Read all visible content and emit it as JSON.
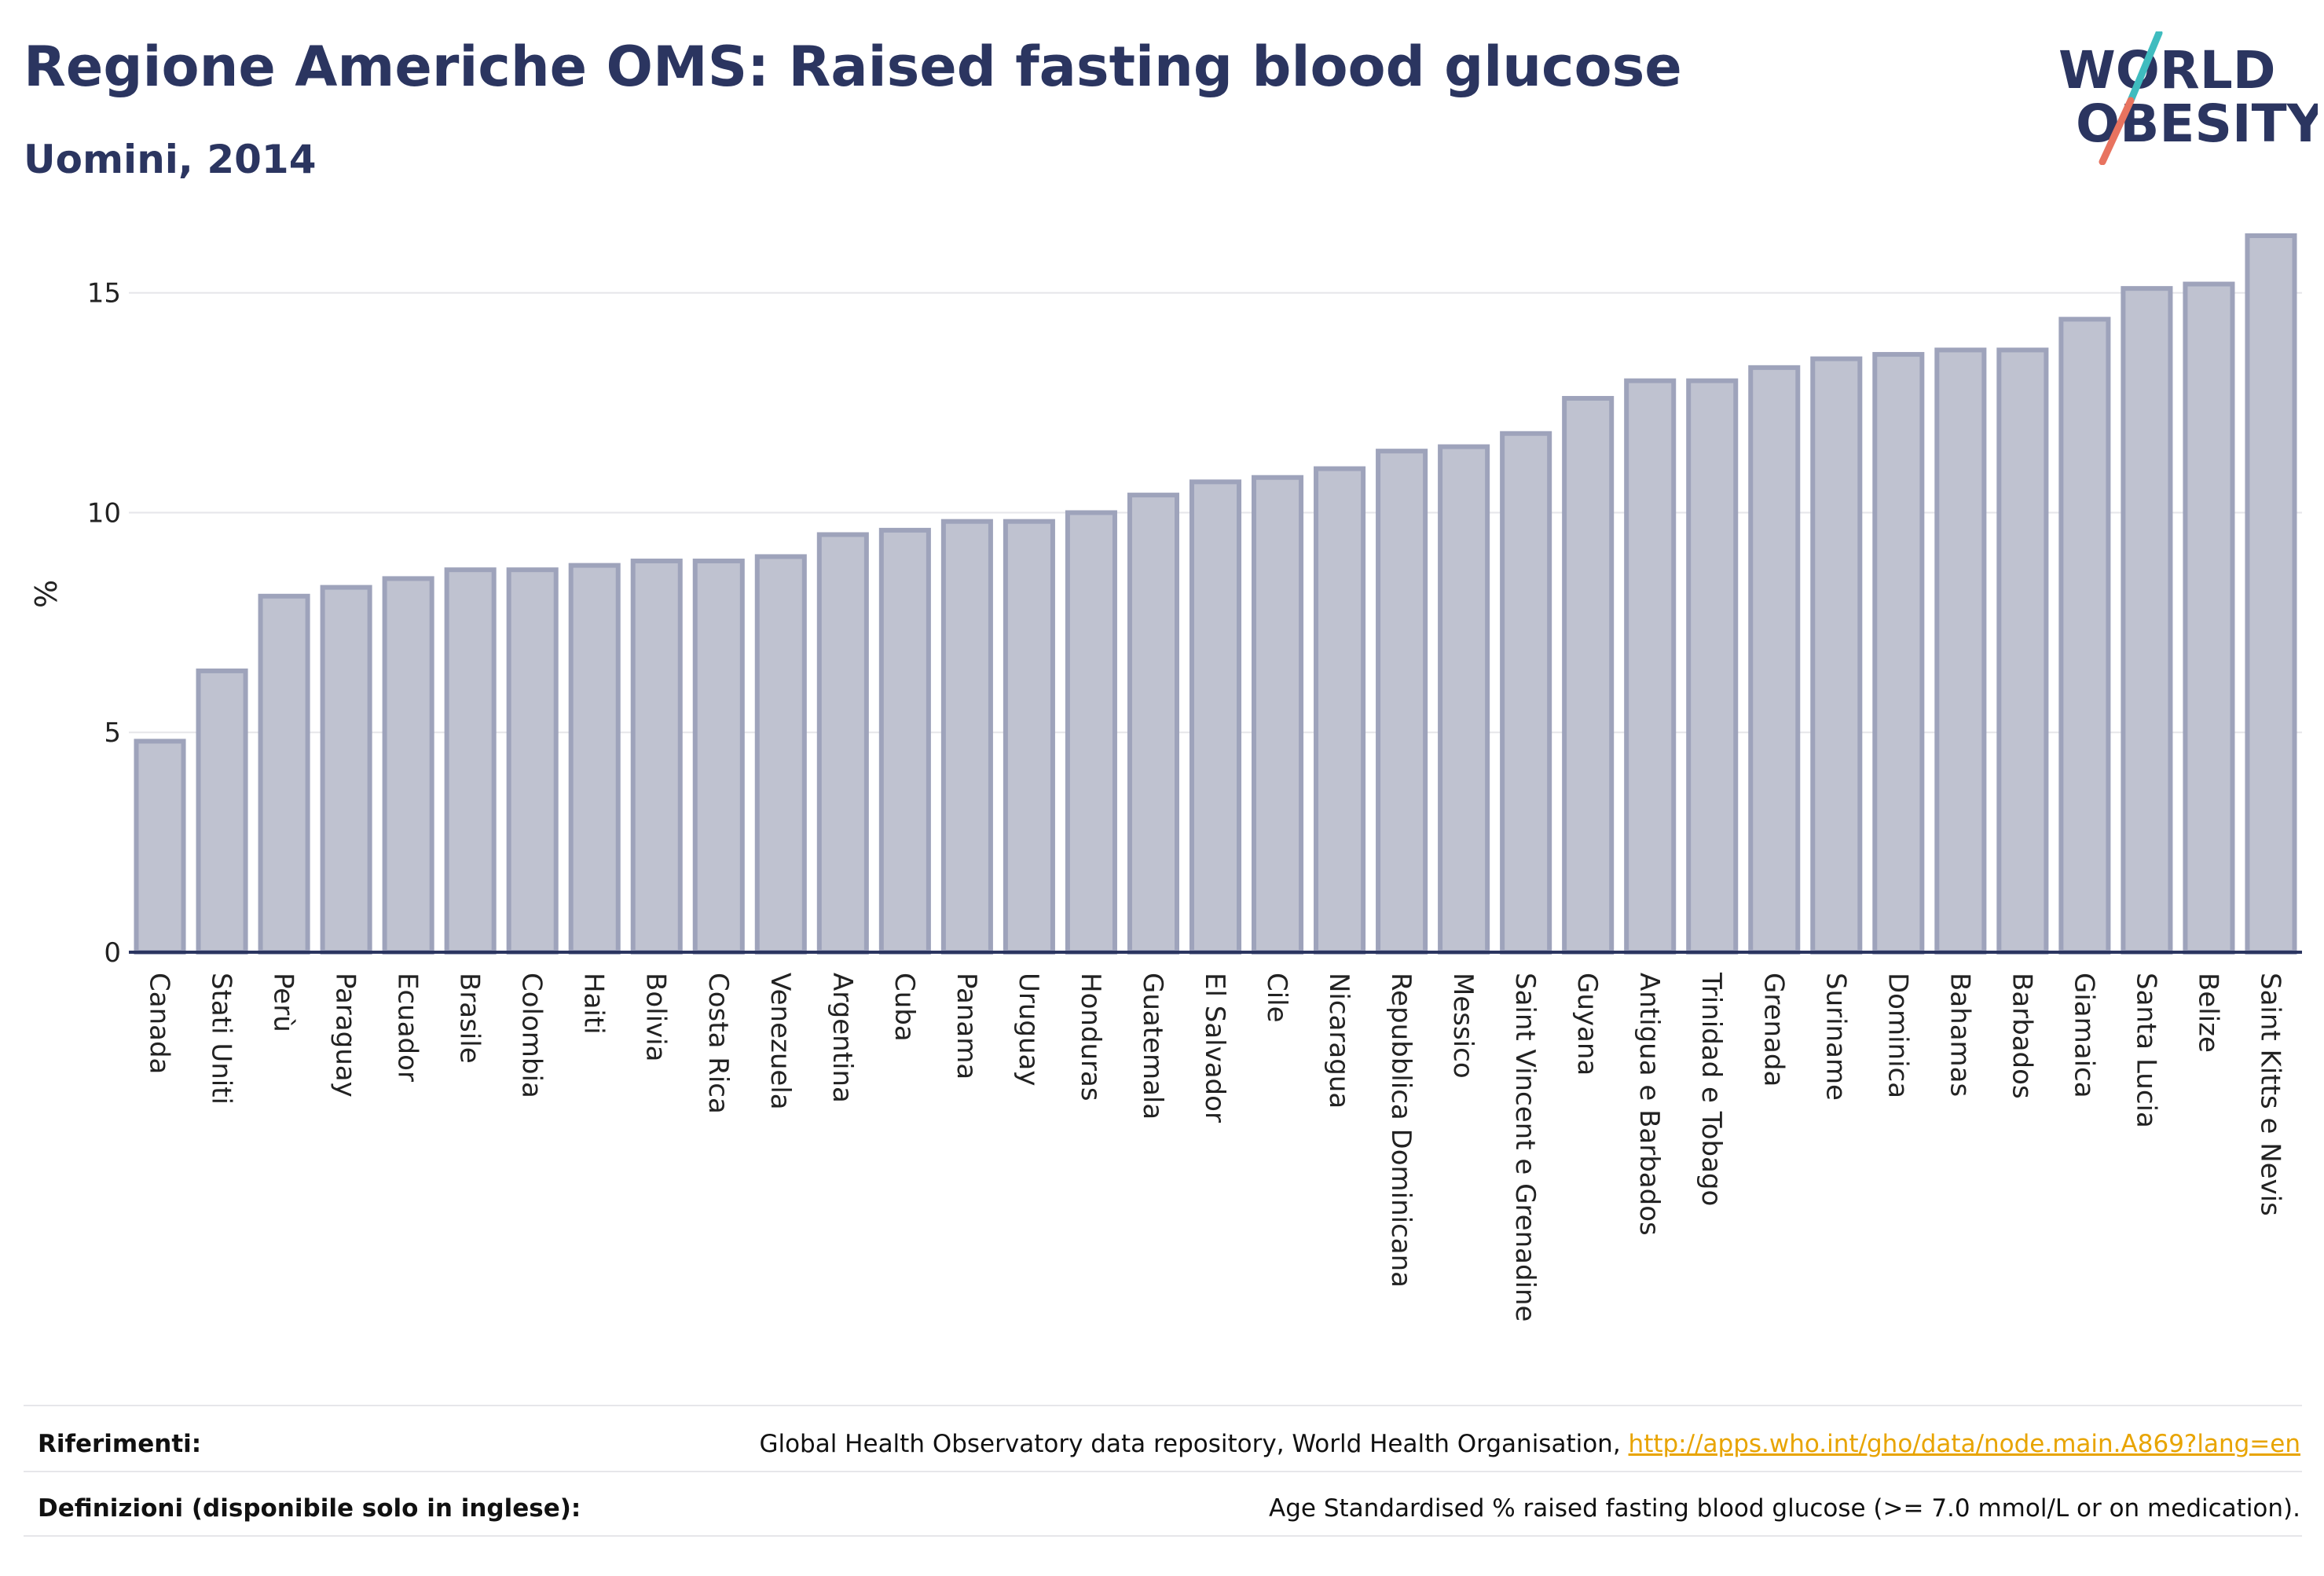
{
  "header": {
    "title": "Regione Americhe OMS: Raised fasting blood glucose",
    "subtitle": "Uomini, 2014"
  },
  "logo": {
    "line1": "WORLD",
    "line2": "OBESITY"
  },
  "colors": {
    "bar_fill": "#bfc2d0",
    "bar_stroke": "#9ea3bb",
    "axis": "#2b3560",
    "grid": "#e6e6ea",
    "logo_text": "#2b3560",
    "logo_teal": "#3fbcbf",
    "logo_coral": "#e8735f",
    "link": "#e8a400"
  },
  "chart_data": {
    "type": "bar",
    "title": "Regione Americhe OMS: Raised fasting blood glucose",
    "subtitle": "Uomini, 2014",
    "xlabel": "",
    "ylabel": "%",
    "ylim": [
      0,
      16.3
    ],
    "yticks": [
      0,
      5,
      10,
      15
    ],
    "grid": true,
    "categories": [
      "Canada",
      "Stati Uniti",
      "Perù",
      "Paraguay",
      "Ecuador",
      "Brasile",
      "Colombia",
      "Haiti",
      "Bolivia",
      "Costa Rica",
      "Venezuela",
      "Argentina",
      "Cuba",
      "Panama",
      "Uruguay",
      "Honduras",
      "Guatemala",
      "El Salvador",
      "Cile",
      "Nicaragua",
      "Repubblica Dominicana",
      "Messico",
      "Saint Vincent e Grenadine",
      "Guyana",
      "Antigua e Barbados",
      "Trinidad e Tobago",
      "Grenada",
      "Suriname",
      "Dominica",
      "Bahamas",
      "Barbados",
      "Giamaica",
      "Santa Lucia",
      "Belize",
      "Saint Kitts e Nevis"
    ],
    "values": [
      4.8,
      6.4,
      8.1,
      8.3,
      8.5,
      8.7,
      8.7,
      8.8,
      8.9,
      8.9,
      9.0,
      9.5,
      9.6,
      9.8,
      9.8,
      10.0,
      10.4,
      10.7,
      10.8,
      11.0,
      11.4,
      11.5,
      11.8,
      12.6,
      13.0,
      13.0,
      13.3,
      13.5,
      13.6,
      13.7,
      13.7,
      14.4,
      15.1,
      15.2,
      16.3
    ]
  },
  "footer": {
    "references_label": "Riferimenti:",
    "references_text": "Global Health Observatory data repository, World Health Organisation, ",
    "references_link": "http://apps.who.int/gho/data/node.main.A869?lang=en",
    "definitions_label": "Definizioni (disponibile solo in inglese):",
    "definitions_text": "Age Standardised % raised fasting blood glucose (>= 7.0 mmol/L or on medication)."
  }
}
